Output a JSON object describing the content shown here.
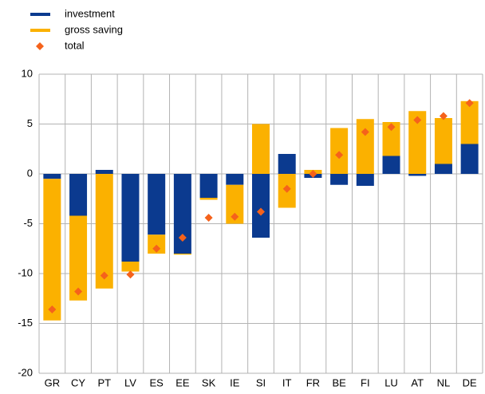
{
  "chart_data": {
    "type": "bar",
    "stacked": true,
    "categories": [
      "GR",
      "CY",
      "PT",
      "LV",
      "ES",
      "EE",
      "SK",
      "IE",
      "SI",
      "IT",
      "FR",
      "BE",
      "FI",
      "LU",
      "AT",
      "NL",
      "DE"
    ],
    "series": [
      {
        "name": "investment",
        "color": "#0b3a8f",
        "type": "bar",
        "values": [
          -0.5,
          -4.2,
          0.4,
          -8.8,
          -6.1,
          -8.0,
          -2.4,
          -1.1,
          -6.4,
          2.0,
          -0.4,
          -1.1,
          -1.2,
          1.8,
          -0.2,
          1.0,
          3.0
        ]
      },
      {
        "name": "gross saving",
        "color": "#fbb100",
        "type": "bar",
        "values": [
          -14.2,
          -8.5,
          -11.5,
          -1.0,
          -1.9,
          -0.1,
          -0.2,
          -3.9,
          5.0,
          -3.4,
          0.4,
          4.6,
          5.5,
          3.4,
          6.3,
          4.6,
          4.3
        ]
      },
      {
        "name": "total",
        "color": "#f5621b",
        "type": "scatter",
        "marker": "diamond",
        "values": [
          -13.6,
          -11.8,
          -10.2,
          -10.1,
          -7.5,
          -6.4,
          -4.4,
          -4.3,
          -3.8,
          -1.5,
          0,
          1.9,
          4.2,
          4.7,
          5.4,
          5.8,
          7.1
        ]
      }
    ],
    "ylim": [
      -20,
      10
    ],
    "yticks": [
      -20,
      -15,
      -10,
      -5,
      0,
      5,
      10
    ],
    "grid": true,
    "legend": "top-left"
  }
}
